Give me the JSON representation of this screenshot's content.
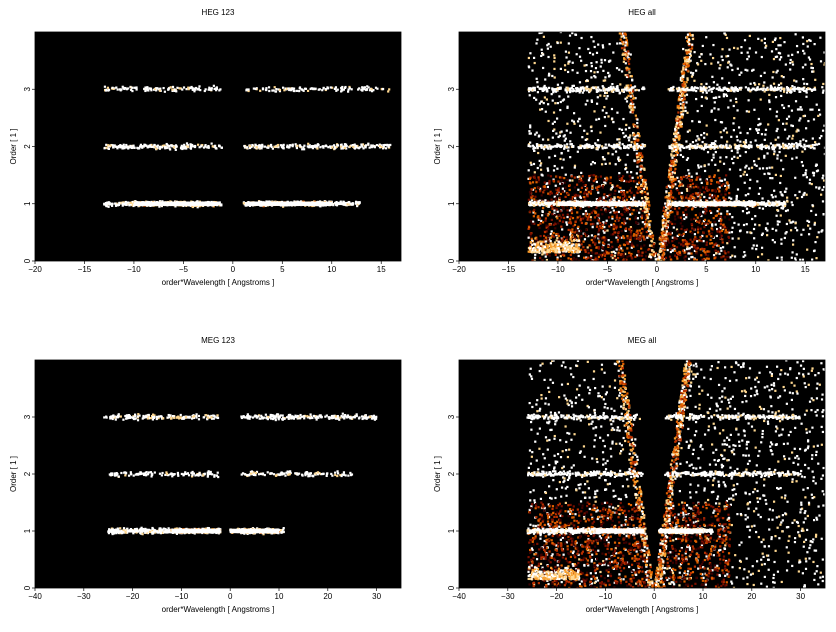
{
  "chart_data": [
    {
      "type": "heatmap",
      "title": "HEG 123",
      "xlabel": "order*Wavelength [ Angstroms ]",
      "ylabel": "Order [ 1 ]",
      "xlim": [
        -20,
        17
      ],
      "ylim": [
        0,
        4
      ],
      "x_ticks": [
        -20,
        -15,
        -10,
        -5,
        0,
        5,
        10,
        15
      ],
      "y_ticks": [
        0,
        1,
        2,
        3
      ],
      "grid": false,
      "background": "#000000",
      "bands": [
        {
          "order": 1,
          "x_range": [
            -13,
            13
          ],
          "core_ranges": [
            [
              -10,
              -1.5
            ],
            [
              1.5,
              10
            ]
          ],
          "density": "high"
        },
        {
          "order": 2,
          "x_range": [
            -13,
            16
          ],
          "core_ranges": [],
          "density": "medium"
        },
        {
          "order": 3,
          "x_range": [
            -13,
            16
          ],
          "core_ranges": [],
          "density": "low"
        }
      ],
      "wedge": false
    },
    {
      "type": "heatmap",
      "title": "HEG all",
      "xlabel": "order*Wavelength [ Angstroms ]",
      "ylabel": "Order [ 1 ]",
      "xlim": [
        -20,
        17
      ],
      "ylim": [
        0,
        4
      ],
      "x_ticks": [
        -20,
        -15,
        -10,
        -5,
        0,
        5,
        10,
        15
      ],
      "y_ticks": [
        0,
        1,
        2,
        3
      ],
      "grid": false,
      "background": "#000000",
      "bands": [
        {
          "order": 1,
          "x_range": [
            -13,
            13
          ],
          "core_ranges": [
            [
              -10,
              -1.5
            ],
            [
              1.5,
              10
            ]
          ],
          "density": "high"
        },
        {
          "order": 2,
          "x_range": [
            -13,
            16
          ],
          "core_ranges": [],
          "density": "medium"
        },
        {
          "order": 3,
          "x_range": [
            -13,
            16
          ],
          "core_ranges": [],
          "density": "medium"
        }
      ],
      "wedge": true
    },
    {
      "type": "heatmap",
      "title": "MEG 123",
      "xlabel": "order*Wavelength [ Angstroms ]",
      "ylabel": "Order [ 1 ]",
      "xlim": [
        -40,
        35
      ],
      "ylim": [
        0,
        4
      ],
      "x_ticks": [
        -40,
        -30,
        -20,
        -10,
        0,
        10,
        20,
        30
      ],
      "y_ticks": [
        0,
        1,
        2,
        3
      ],
      "grid": false,
      "background": "#000000",
      "bands": [
        {
          "order": 1,
          "x_range": [
            -25,
            11
          ],
          "core_ranges": [
            [
              -12,
              -2
            ],
            [
              0,
              10
            ]
          ],
          "density": "high"
        },
        {
          "order": 2,
          "x_range": [
            -25,
            25
          ],
          "core_ranges": [],
          "density": "low"
        },
        {
          "order": 3,
          "x_range": [
            -26,
            30
          ],
          "core_ranges": [],
          "density": "medium"
        }
      ],
      "wedge": false
    },
    {
      "type": "heatmap",
      "title": "MEG all",
      "xlabel": "order*Wavelength [ Angstroms ]",
      "ylabel": "Order [ 1 ]",
      "xlim": [
        -40,
        35
      ],
      "ylim": [
        0,
        4
      ],
      "x_ticks": [
        -40,
        -30,
        -20,
        -10,
        0,
        10,
        20,
        30
      ],
      "y_ticks": [
        0,
        1,
        2,
        3
      ],
      "grid": false,
      "background": "#000000",
      "bands": [
        {
          "order": 1,
          "x_range": [
            -26,
            12
          ],
          "core_ranges": [
            [
              -12,
              -2
            ],
            [
              1,
              10
            ]
          ],
          "density": "high"
        },
        {
          "order": 2,
          "x_range": [
            -26,
            30
          ],
          "core_ranges": [],
          "density": "medium"
        },
        {
          "order": 3,
          "x_range": [
            -26,
            30
          ],
          "core_ranges": [],
          "density": "medium"
        }
      ],
      "wedge": true
    }
  ],
  "colors": {
    "background": "#000000",
    "page": "#ffffff",
    "hot": [
      "#3a0000",
      "#7a1000",
      "#b83000",
      "#e06000",
      "#f7a030",
      "#ffd890",
      "#ffffff"
    ]
  }
}
